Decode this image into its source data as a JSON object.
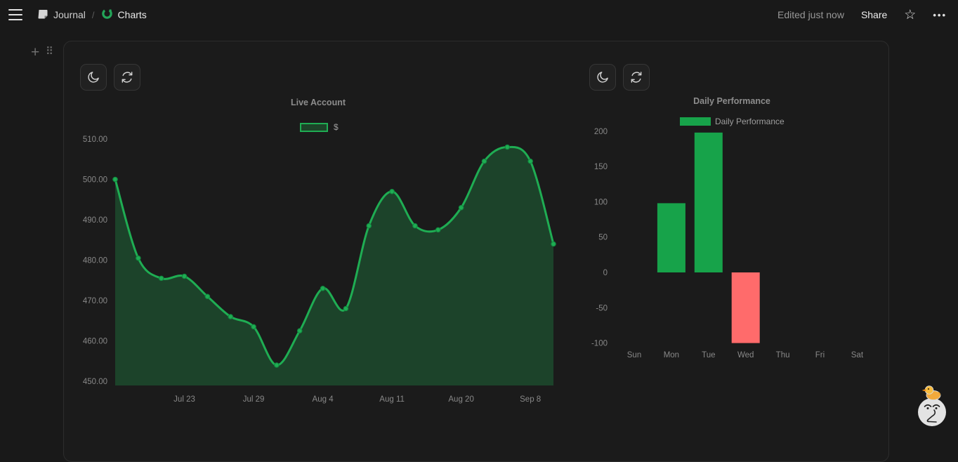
{
  "topbar": {
    "breadcrumb": {
      "journal": "Journal",
      "separator": "/",
      "charts": "Charts"
    },
    "edited_status": "Edited just now",
    "share_label": "Share"
  },
  "icons": {
    "star": "☆",
    "more": "•••",
    "plus": "+",
    "drag_handle": "⠿"
  },
  "charts": [
    {
      "title": "Live Account",
      "legend_label": "$",
      "chart_data": {
        "type": "line",
        "title": "Live Account",
        "series_name": "$",
        "values": [
          500,
          480.5,
          475.5,
          476,
          471,
          466,
          463.5,
          454,
          462.5,
          473,
          468,
          488.5,
          497,
          488.5,
          487.5,
          493,
          504.5,
          508,
          504.5,
          484
        ],
        "x_tick_labels": [
          {
            "index": 3,
            "label": "Jul 23"
          },
          {
            "index": 6,
            "label": "Jul 29"
          },
          {
            "index": 9,
            "label": "Aug 4"
          },
          {
            "index": 12,
            "label": "Aug 11"
          },
          {
            "index": 15,
            "label": "Aug 20"
          },
          {
            "index": 18,
            "label": "Sep 8"
          }
        ],
        "y_ticks": [
          {
            "value": 510,
            "label": "510.00"
          },
          {
            "value": 500,
            "label": "500.00"
          },
          {
            "value": 490,
            "label": "490.00"
          },
          {
            "value": 480,
            "label": "480.00"
          },
          {
            "value": 470,
            "label": "470.00"
          },
          {
            "value": 460,
            "label": "460.00"
          },
          {
            "value": 450,
            "label": "450.00"
          }
        ],
        "ylim": [
          450,
          510
        ],
        "grid": false,
        "colors": {
          "line": "#1fad53",
          "fill": "rgba(31,173,83,0.28)",
          "marker_edge": "#128a40"
        }
      }
    },
    {
      "title": "Daily Performance",
      "legend_label": "Daily Performance",
      "chart_data": {
        "type": "bar",
        "title": "Daily Performance",
        "categories": [
          "Sun",
          "Mon",
          "Tue",
          "Wed",
          "Thu",
          "Fri",
          "Sat"
        ],
        "values": [
          0,
          98,
          198,
          -100,
          0,
          0,
          0
        ],
        "y_ticks": [
          {
            "value": 200,
            "label": "200"
          },
          {
            "value": 150,
            "label": "150"
          },
          {
            "value": 100,
            "label": "100"
          },
          {
            "value": 50,
            "label": "50"
          },
          {
            "value": 0,
            "label": "0"
          },
          {
            "value": -50,
            "label": "-50"
          },
          {
            "value": -100,
            "label": "-100"
          }
        ],
        "ylim": [
          -100,
          200
        ],
        "grid": false,
        "colors": {
          "positive": "#17a34a",
          "negative": "#ff6b6b"
        }
      }
    }
  ]
}
